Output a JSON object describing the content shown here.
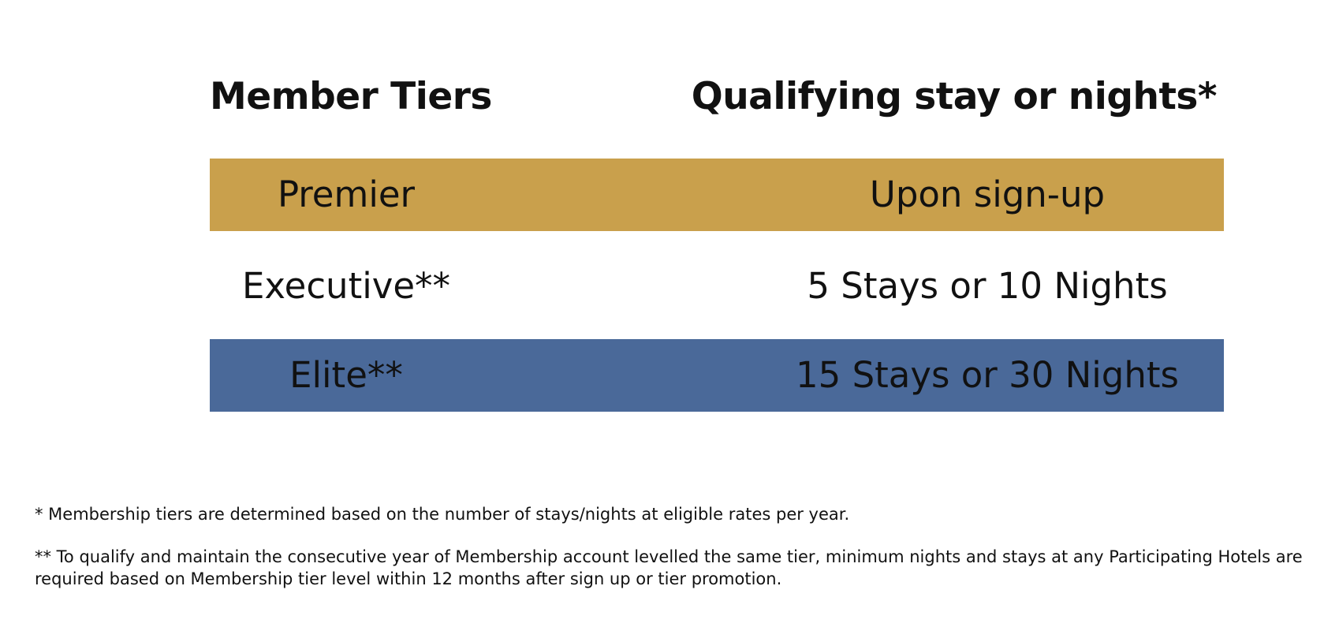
{
  "headers": {
    "tier": "Member Tiers",
    "qualifying": "Qualifying stay or nights*"
  },
  "tiers": [
    {
      "name": "Premier",
      "requirement": "Upon sign-up",
      "color": "#C9A04C"
    },
    {
      "name": "Executive**",
      "requirement": "5 Stays or 10 Nights",
      "color": "#FFFFFF"
    },
    {
      "name": "Elite**",
      "requirement": "15 Stays or 30 Nights",
      "color": "#4A6999"
    }
  ],
  "footnotes": {
    "single_star": "* Membership tiers are determined based on the number of stays/nights at eligible rates per year.",
    "double_star": "** To qualify and maintain the consecutive year of Membership account levelled the same tier, minimum nights and stays at any Participating Hotels are required based on Membership tier level within 12 months after sign up or tier promotion."
  }
}
